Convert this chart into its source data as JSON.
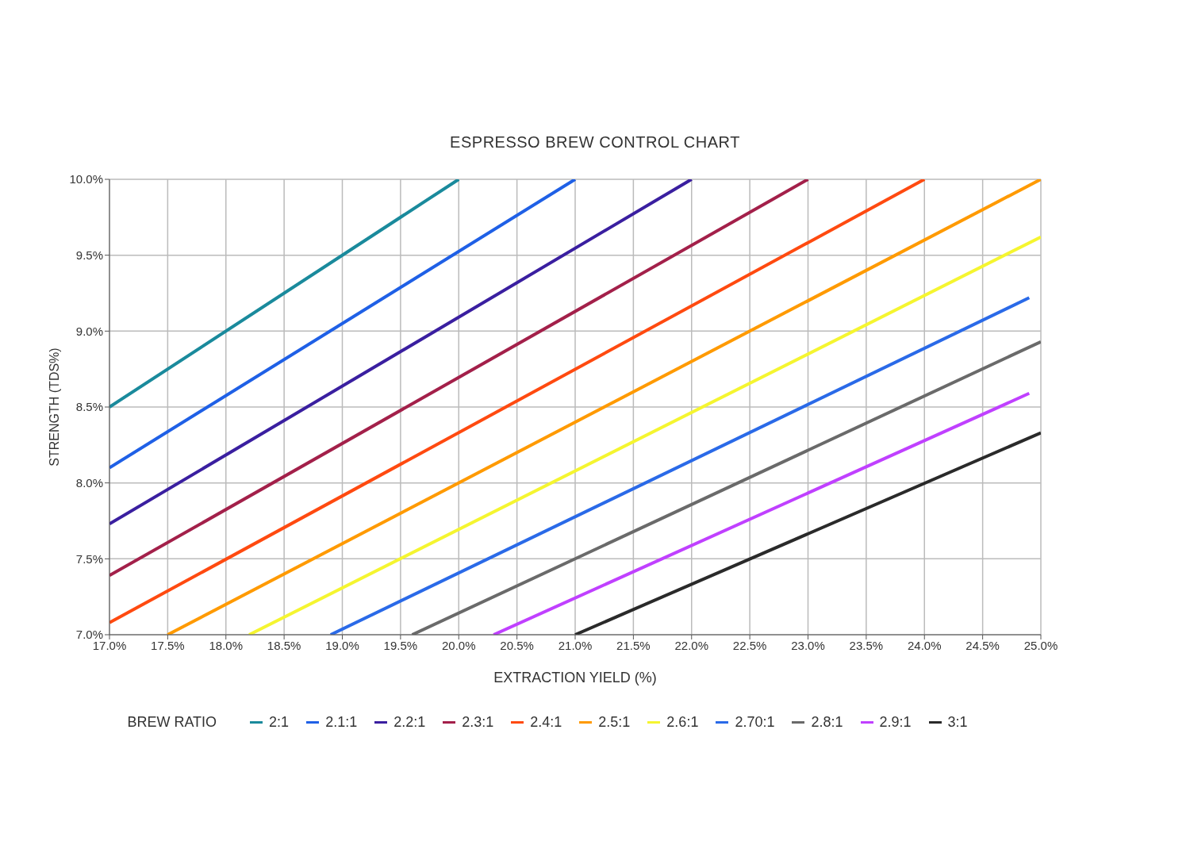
{
  "chart_data": {
    "type": "line",
    "title": "ESPRESSO BREW CONTROL CHART",
    "xlabel": "EXTRACTION YIELD (%)",
    "ylabel": "STRENGTH (TDS%)",
    "legend_title": "BREW RATIO",
    "xlim": [
      17,
      25
    ],
    "ylim": [
      7,
      10
    ],
    "xticks": [
      {
        "value": 17,
        "label": "17.0%"
      },
      {
        "value": 17.5,
        "label": "17.5%"
      },
      {
        "value": 18,
        "label": "18.0%"
      },
      {
        "value": 18.5,
        "label": "18.5%"
      },
      {
        "value": 19,
        "label": "19.0%"
      },
      {
        "value": 19.5,
        "label": "19.5%"
      },
      {
        "value": 20,
        "label": "20.0%"
      },
      {
        "value": 20.5,
        "label": "20.5%"
      },
      {
        "value": 21,
        "label": "21.0%"
      },
      {
        "value": 21.5,
        "label": "21.5%"
      },
      {
        "value": 22,
        "label": "22.0%"
      },
      {
        "value": 22.5,
        "label": "22.5%"
      },
      {
        "value": 23,
        "label": "23.0%"
      },
      {
        "value": 23.5,
        "label": "23.5%"
      },
      {
        "value": 24,
        "label": "24.0%"
      },
      {
        "value": 24.5,
        "label": "24.5%"
      },
      {
        "value": 25,
        "label": "25.0%"
      }
    ],
    "yticks": [
      {
        "value": 7,
        "label": "7.0%"
      },
      {
        "value": 7.5,
        "label": "7.5%"
      },
      {
        "value": 8,
        "label": "8.0%"
      },
      {
        "value": 8.5,
        "label": "8.5%"
      },
      {
        "value": 9,
        "label": "9.0%"
      },
      {
        "value": 9.5,
        "label": "9.5%"
      },
      {
        "value": 10,
        "label": "10.0%"
      }
    ],
    "grid": true,
    "legend": "bottom",
    "marker": "none",
    "line_style": "solid",
    "series": [
      {
        "name": "2:1",
        "color": "#1a8a9c",
        "x": [
          17,
          20
        ],
        "values": [
          8.5,
          10
        ]
      },
      {
        "name": "2.1:1",
        "color": "#1f60e6",
        "x": [
          17,
          21
        ],
        "values": [
          8.1,
          10
        ]
      },
      {
        "name": "2.2:1",
        "color": "#3a1fa0",
        "x": [
          17,
          22
        ],
        "values": [
          7.73,
          10
        ]
      },
      {
        "name": "2.3:1",
        "color": "#a3204a",
        "x": [
          17,
          23
        ],
        "values": [
          7.39,
          10
        ]
      },
      {
        "name": "2.4:1",
        "color": "#ff4a10",
        "x": [
          17,
          24
        ],
        "values": [
          7.08,
          10
        ]
      },
      {
        "name": "2.5:1",
        "color": "#ff9a00",
        "x": [
          17.5,
          25
        ],
        "values": [
          7,
          10
        ]
      },
      {
        "name": "2.6:1",
        "color": "#f5f530",
        "x": [
          18.2,
          25
        ],
        "values": [
          7,
          9.62
        ]
      },
      {
        "name": "2.70:1",
        "color": "#2a6ae8",
        "x": [
          18.9,
          24.9
        ],
        "values": [
          7,
          9.22
        ]
      },
      {
        "name": "2.8:1",
        "color": "#6a6a6a",
        "x": [
          19.6,
          25
        ],
        "values": [
          7,
          8.93
        ]
      },
      {
        "name": "2.9:1",
        "color": "#c040ff",
        "x": [
          20.3,
          24.9
        ],
        "values": [
          7,
          8.59
        ]
      },
      {
        "name": "3:1",
        "color": "#2a2a2a",
        "x": [
          21,
          25
        ],
        "values": [
          7,
          8.33
        ]
      }
    ]
  }
}
